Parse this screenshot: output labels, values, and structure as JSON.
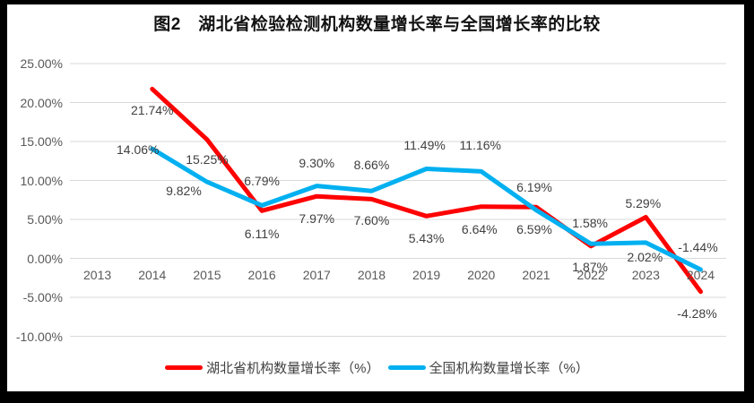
{
  "title": "图2　湖北省检验检测机构数量增长率与全国增长率的比较",
  "chart_data": {
    "type": "line",
    "categories": [
      "2013",
      "2014",
      "2015",
      "2016",
      "2017",
      "2018",
      "2019",
      "2020",
      "2021",
      "2022",
      "2023",
      "2024"
    ],
    "series": [
      {
        "name": "湖北省机构数量增长率（%）",
        "color": "#FF0000",
        "values": [
          null,
          21.74,
          15.25,
          6.11,
          7.97,
          7.6,
          5.43,
          6.64,
          6.59,
          1.58,
          5.29,
          -4.28
        ],
        "label_offsets": [
          null,
          [
            0,
            24
          ],
          [
            0,
            22
          ],
          [
            0,
            26
          ],
          [
            0,
            25
          ],
          [
            0,
            24
          ],
          [
            0,
            25
          ],
          [
            -2,
            25
          ],
          [
            -2,
            25
          ],
          [
            -1,
            -26
          ],
          [
            -3,
            -15
          ],
          [
            -4,
            24
          ]
        ]
      },
      {
        "name": "全国机构数量增长率（%）",
        "color": "#00B0F0",
        "values": [
          null,
          14.06,
          9.82,
          6.79,
          9.3,
          8.66,
          11.49,
          11.16,
          6.19,
          1.87,
          2.02,
          -1.44
        ],
        "label_offsets": [
          null,
          [
            -16,
            1
          ],
          [
            -26,
            10
          ],
          [
            0,
            -27
          ],
          [
            0,
            -26
          ],
          [
            0,
            -29
          ],
          [
            -2,
            -27
          ],
          [
            -1,
            -29
          ],
          [
            -2,
            -26
          ],
          [
            -1,
            26
          ],
          [
            -1,
            16
          ],
          [
            -3,
            -25
          ]
        ]
      }
    ],
    "ylim": [
      -10,
      25
    ],
    "ytick_labels": [
      "25.00%",
      "20.00%",
      "15.00%",
      "10.00%",
      "5.00%",
      "0.00%",
      "-5.00%",
      "-10.00%"
    ],
    "label_format": "percent_2dp",
    "grid": "horizontal",
    "legend_position": "bottom"
  },
  "colors": {
    "gridline": "#D9D9D9",
    "axis_text": "#595959",
    "data_label_text": "#404040",
    "frame": "#000000",
    "background": "#FFFFFF"
  }
}
